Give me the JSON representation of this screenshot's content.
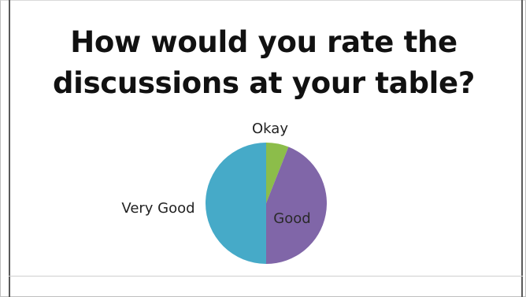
{
  "chart_data": {
    "type": "pie",
    "title_lines": [
      "How would you rate the",
      "discussions at your table?"
    ],
    "slices": [
      {
        "label": "Okay",
        "value": 6,
        "color": "#8cbd4a",
        "label_color": "#222222"
      },
      {
        "label": "Good",
        "value": 44,
        "color": "#8066a8",
        "label_color": "#2a2a2a"
      },
      {
        "label": "Very Good",
        "value": 50,
        "color": "#46aac8",
        "label_color": "#222222"
      }
    ],
    "start_angle_deg": 0,
    "direction": "clockwise"
  }
}
